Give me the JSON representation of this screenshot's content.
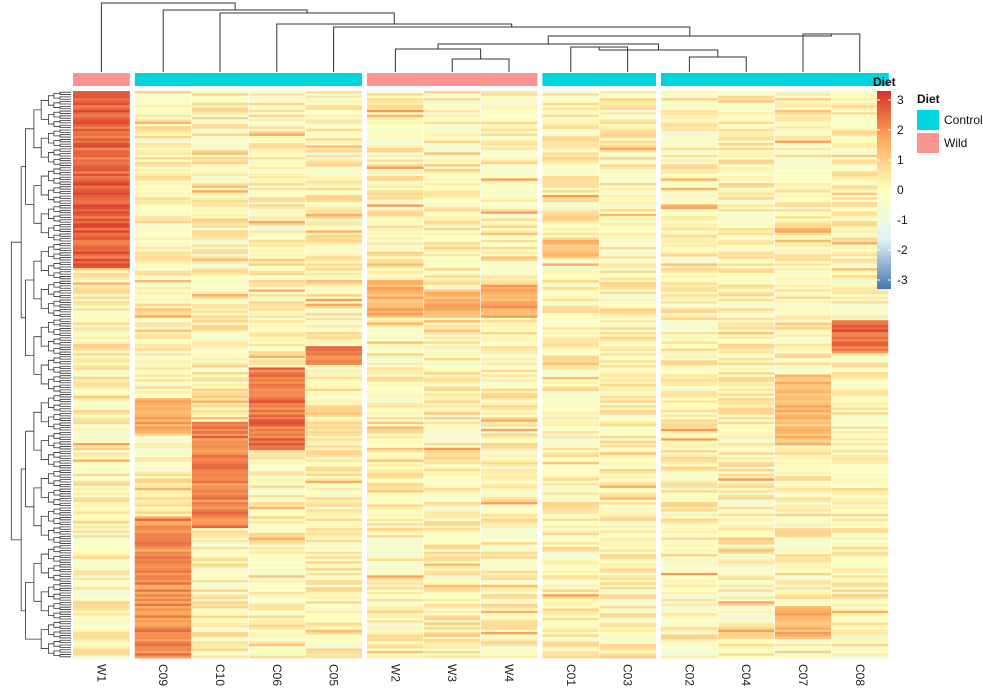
{
  "chart_data": {
    "type": "heatmap",
    "columns": [
      "W1",
      "C09",
      "C10",
      "C06",
      "C05",
      "W2",
      "W3",
      "W4",
      "C01",
      "C03",
      "C02",
      "C04",
      "C07",
      "C08"
    ],
    "column_groups": [
      "Wild",
      "Control",
      "Control",
      "Control",
      "Control",
      "Wild",
      "Wild",
      "Wild",
      "Control",
      "Control",
      "Control",
      "Control",
      "Control",
      "Control"
    ],
    "gap_after_column_index": [
      0,
      4,
      7,
      9
    ],
    "row_count": 240,
    "annotation_title": "Diet",
    "annotation_legend": {
      "title": "Diet",
      "entries": [
        {
          "label": "Control",
          "color": "#00d4dc"
        },
        {
          "label": "Wild",
          "color": "#fa9490"
        }
      ]
    },
    "color_scale": {
      "title": "",
      "min": -3.3,
      "max": 3.3,
      "ticks": [
        "3",
        "2",
        "1",
        "0",
        "-1",
        "-2",
        "-3"
      ],
      "tick_values": [
        3,
        2,
        1,
        0,
        -1,
        -2,
        -3
      ],
      "colors": [
        "#4575b4",
        "#e0f3f8",
        "#ffffbf",
        "#fdae61",
        "#d73027"
      ]
    },
    "high_blocks": [
      {
        "column": "W1",
        "rows": [
          0,
          75
        ],
        "level": 2.6
      },
      {
        "column": "W2",
        "rows": [
          80,
          96
        ],
        "level": 1.5
      },
      {
        "column": "W3",
        "rows": [
          84,
          96
        ],
        "level": 1.5
      },
      {
        "column": "W4",
        "rows": [
          82,
          96
        ],
        "level": 1.6
      },
      {
        "column": "C08",
        "rows": [
          97,
          110
        ],
        "level": 2.5
      },
      {
        "column": "C06",
        "rows": [
          117,
          152
        ],
        "level": 2.4
      },
      {
        "column": "C05",
        "rows": [
          108,
          116
        ],
        "level": 2.2
      },
      {
        "column": "C10",
        "rows": [
          140,
          185
        ],
        "level": 2.2
      },
      {
        "column": "C09",
        "rows": [
          130,
          145
        ],
        "level": 1.6
      },
      {
        "column": "C09",
        "rows": [
          180,
          240
        ],
        "level": 2.1
      },
      {
        "column": "C07",
        "rows": [
          120,
          150
        ],
        "level": 1.3
      },
      {
        "column": "C07",
        "rows": [
          218,
          232
        ],
        "level": 1.5
      },
      {
        "column": "C01",
        "rows": [
          62,
          70
        ],
        "level": 1.2
      }
    ]
  }
}
